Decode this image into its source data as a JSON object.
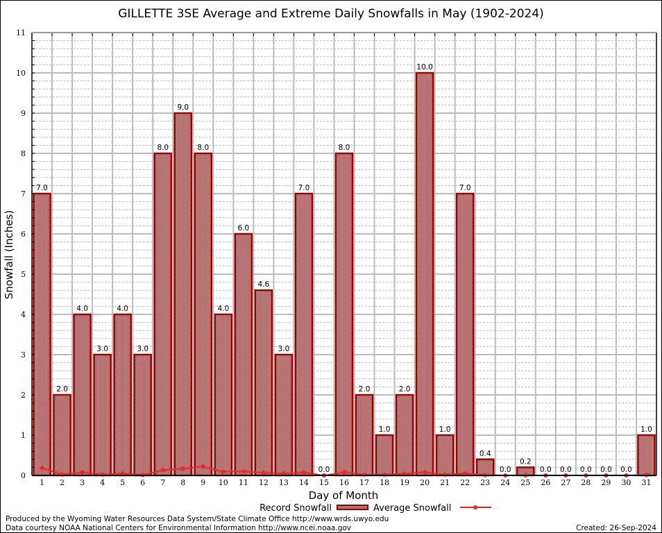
{
  "chart_data": {
    "type": "bar",
    "title": "GILLETTE 3SE Average and Extreme Daily Snowfalls in May (1902-2024)",
    "xlabel": "Day of Month",
    "ylabel": "Snowfall (Inches)",
    "ylim": [
      0,
      11
    ],
    "yticks": [
      "0",
      "1",
      "2",
      "3",
      "4",
      "5",
      "6",
      "7",
      "8",
      "9",
      "10",
      "11"
    ],
    "grid": true,
    "legend_position": "bottom",
    "categories": [
      "1",
      "2",
      "3",
      "4",
      "5",
      "6",
      "7",
      "8",
      "9",
      "10",
      "11",
      "12",
      "13",
      "14",
      "15",
      "16",
      "17",
      "18",
      "19",
      "20",
      "21",
      "22",
      "23",
      "24",
      "25",
      "26",
      "27",
      "28",
      "29",
      "30",
      "31"
    ],
    "series": [
      {
        "name": "Record Snowfall",
        "type": "bar",
        "color": "#cc0000",
        "border": "#990000",
        "values": [
          7.0,
          2.0,
          4.0,
          3.0,
          4.0,
          3.0,
          8.0,
          9.0,
          8.0,
          4.0,
          6.0,
          4.6,
          3.0,
          7.0,
          0.0,
          8.0,
          2.0,
          1.0,
          2.0,
          10.0,
          1.0,
          7.0,
          0.4,
          0.0,
          0.2,
          0.0,
          0.0,
          0.0,
          0.0,
          0.0,
          1.0
        ],
        "labels": [
          "7.0",
          "2.0",
          "4.0",
          "3.0",
          "4.0",
          "3.0",
          "8.0",
          "9.0",
          "8.0",
          "4.0",
          "6.0",
          "4.6",
          "3.0",
          "7.0",
          "0.0",
          "8.0",
          "2.0",
          "1.0",
          "2.0",
          "10.0",
          "1.0",
          "7.0",
          "0.4",
          "0.0",
          "0.2",
          "0.0",
          "0.0",
          "0.0",
          "0.0",
          "0.0",
          "1.0"
        ]
      },
      {
        "name": "Average Snowfall",
        "type": "line",
        "color": "#ff2020",
        "values": [
          0.19,
          0.02,
          0.08,
          0.02,
          0.05,
          0.01,
          0.13,
          0.17,
          0.22,
          0.09,
          0.1,
          0.07,
          0.05,
          0.07,
          0.0,
          0.08,
          0.02,
          0.02,
          0.04,
          0.08,
          0.02,
          0.05,
          0.01,
          0.0,
          0.0,
          0.0,
          0.0,
          0.0,
          0.0,
          0.0,
          0.01
        ]
      }
    ]
  },
  "footer": {
    "produced": "Produced by the Wyoming Water Resources Data System/State Climate Office http://www.wrds.uwyo.edu",
    "courtesy": "Data courtesy NOAA National Centers for Environmental Information http://www.ncei.noaa.gov",
    "created": "Created: 26-Sep-2024"
  }
}
